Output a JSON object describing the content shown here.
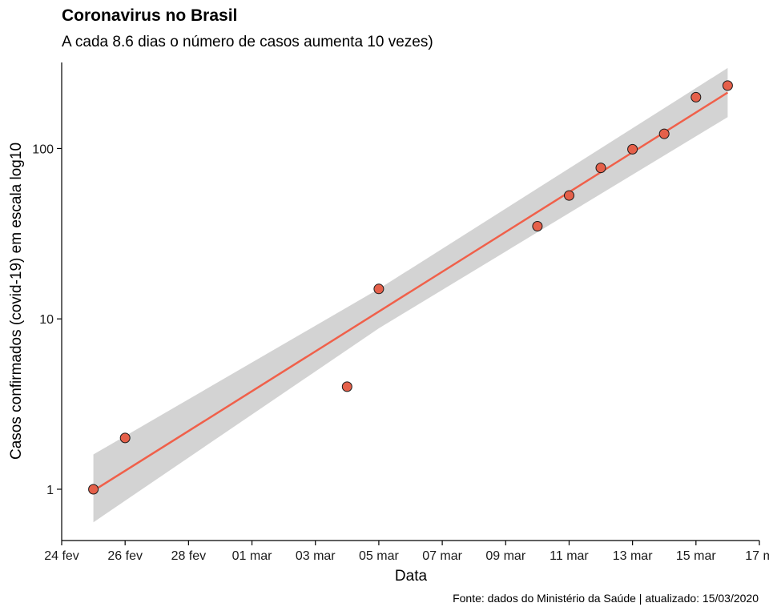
{
  "title": "Coronavirus no Brasil",
  "subtitle": "A cada  8.6 dias o número de casos aumenta 10 vezes)",
  "caption": "Fonte: dados do Ministério da Saúde | atualizado: 15/03/2020",
  "colors": {
    "fit_line": "#f0604a",
    "point_fill": "#e5604a",
    "point_stroke": "#1a1a1a",
    "confidence_band": "#d3d3d3",
    "axis": "#000000"
  },
  "chart_data": {
    "type": "scatter",
    "title": "Coronavirus no Brasil",
    "subtitle": "A cada  8.6 dias o número de casos aumenta 10 vezes)",
    "xlabel": "Data",
    "ylabel": "Casos confirmados (covid-19) em escala log10",
    "y_scale": "log10",
    "grid": false,
    "xlim": [
      "2020-02-24",
      "2020-03-17"
    ],
    "ylim": [
      0.5,
      320
    ],
    "x_ticks": [
      "2020-02-24",
      "2020-02-26",
      "2020-02-28",
      "2020-03-01",
      "2020-03-03",
      "2020-03-05",
      "2020-03-07",
      "2020-03-09",
      "2020-03-11",
      "2020-03-13",
      "2020-03-15",
      "2020-03-17"
    ],
    "x_tick_labels": [
      "24 fev",
      "26 fev",
      "28 fev",
      "01 mar",
      "03 mar",
      "05 mar",
      "07 mar",
      "09 mar",
      "11 mar",
      "13 mar",
      "15 mar",
      "17 m"
    ],
    "y_ticks": [
      1,
      10,
      100
    ],
    "y_tick_labels": [
      "1",
      "10",
      "100"
    ],
    "points": [
      {
        "x": "2020-02-25",
        "y": 1
      },
      {
        "x": "2020-02-26",
        "y": 2
      },
      {
        "x": "2020-03-04",
        "y": 4
      },
      {
        "x": "2020-03-05",
        "y": 15
      },
      {
        "x": "2020-03-10",
        "y": 35
      },
      {
        "x": "2020-03-11",
        "y": 53
      },
      {
        "x": "2020-03-12",
        "y": 77
      },
      {
        "x": "2020-03-13",
        "y": 99
      },
      {
        "x": "2020-03-14",
        "y": 122
      },
      {
        "x": "2020-03-15",
        "y": 200
      },
      {
        "x": "2020-03-16",
        "y": 234
      }
    ],
    "fit": {
      "type": "linear on log10 scale",
      "line": [
        {
          "x": "2020-02-25",
          "y": 0.98
        },
        {
          "x": "2020-03-16",
          "y": 213
        }
      ],
      "band": [
        {
          "x": "2020-02-25",
          "low": 0.64,
          "high": 1.6
        },
        {
          "x": "2020-03-05",
          "low": 8.8,
          "high": 15.0
        },
        {
          "x": "2020-03-16",
          "low": 153,
          "high": 297
        }
      ]
    }
  }
}
